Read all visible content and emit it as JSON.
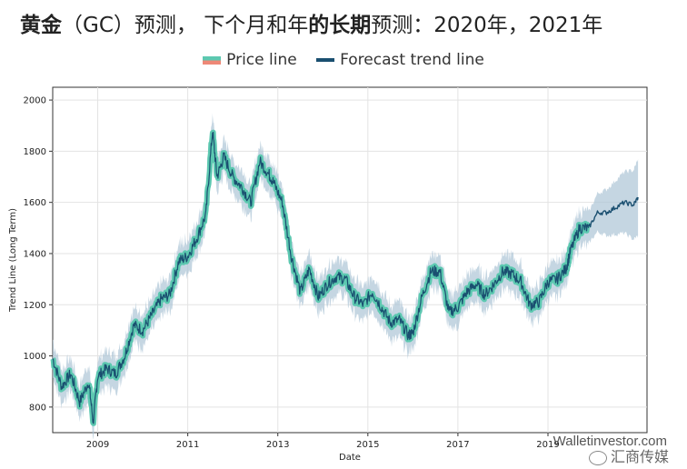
{
  "title": {
    "p1": "黄金",
    "p2": "（GC）预测，  下个月和年",
    "p3": "的长期",
    "p4": "预测：2020年，2021年"
  },
  "colors": {
    "price": "#5cc8b0",
    "price_alt": "#ee8877",
    "forecast": "#1a4f70",
    "band": "#adc4d6"
  },
  "watermark": "Walletinvestor.com",
  "wechat": "汇商传媒",
  "chart_data": {
    "type": "line",
    "title": "",
    "xlabel": "Date",
    "ylabel": "Trend Line (Long Term)",
    "xlim": [
      2008.0,
      2021.2
    ],
    "ylim": [
      700,
      2050
    ],
    "xticks": [
      "2009",
      "2011",
      "2013",
      "2015",
      "2017",
      "2019"
    ],
    "yticks": [
      "800",
      "1000",
      "1200",
      "1400",
      "1600",
      "1800",
      "2000"
    ],
    "grid": true,
    "legend_position": "top-center",
    "series": [
      {
        "name": "Price line",
        "style": "thick",
        "x": [
          2008.0,
          2008.2,
          2008.4,
          2008.6,
          2008.8,
          2008.9,
          2009.0,
          2009.2,
          2009.4,
          2009.6,
          2009.8,
          2010.0,
          2010.2,
          2010.4,
          2010.6,
          2010.8,
          2011.0,
          2011.2,
          2011.4,
          2011.55,
          2011.65,
          2011.8,
          2012.0,
          2012.2,
          2012.4,
          2012.6,
          2012.8,
          2012.9,
          2013.1,
          2013.3,
          2013.5,
          2013.7,
          2013.9,
          2014.1,
          2014.3,
          2014.5,
          2014.7,
          2014.9,
          2015.1,
          2015.3,
          2015.5,
          2015.7,
          2015.9,
          2016.0,
          2016.2,
          2016.4,
          2016.6,
          2016.8,
          2017.0,
          2017.2,
          2017.4,
          2017.6,
          2017.8,
          2018.0,
          2018.2,
          2018.4,
          2018.6,
          2018.8,
          2019.0,
          2019.2,
          2019.4,
          2019.5,
          2019.7,
          2019.9
        ],
        "y": [
          990,
          880,
          930,
          820,
          900,
          740,
          920,
          950,
          930,
          1000,
          1120,
          1100,
          1160,
          1220,
          1240,
          1370,
          1390,
          1460,
          1550,
          1880,
          1700,
          1780,
          1700,
          1660,
          1600,
          1760,
          1710,
          1680,
          1600,
          1390,
          1250,
          1340,
          1230,
          1280,
          1310,
          1300,
          1230,
          1200,
          1250,
          1190,
          1130,
          1140,
          1080,
          1090,
          1230,
          1330,
          1330,
          1170,
          1190,
          1250,
          1280,
          1240,
          1280,
          1330,
          1320,
          1290,
          1200,
          1210,
          1290,
          1300,
          1340,
          1410,
          1500,
          1500
        ]
      },
      {
        "name": "Forecast trend line",
        "style": "thin",
        "x": [
          2019.9,
          2020.1,
          2020.3,
          2020.5,
          2020.7,
          2020.9,
          2021.0
        ],
        "y": [
          1500,
          1560,
          1560,
          1580,
          1600,
          1590,
          1620
        ]
      }
    ]
  }
}
